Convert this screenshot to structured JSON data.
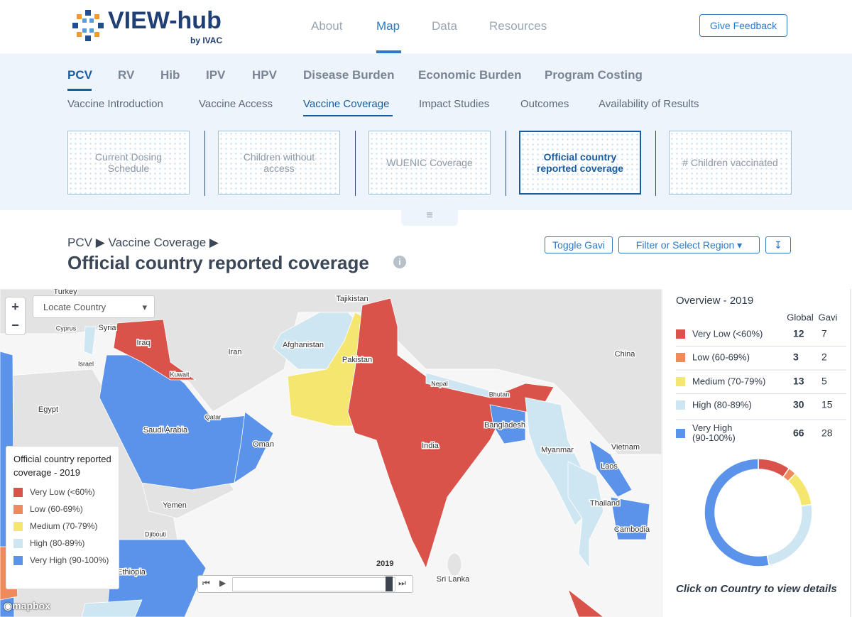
{
  "header": {
    "logo": "VIEW-hub",
    "logo_sub": "by IVAC",
    "nav": [
      "About",
      "Map",
      "Data",
      "Resources"
    ],
    "feedback": "Give Feedback"
  },
  "vaccine_tabs": [
    "PCV",
    "RV",
    "Hib",
    "IPV",
    "HPV",
    "Disease Burden",
    "Economic Burden",
    "Program Costing"
  ],
  "topic_tabs": [
    "Vaccine Introduction",
    "Vaccine Access",
    "Vaccine Coverage",
    "Impact Studies",
    "Outcomes",
    "Availability of Results"
  ],
  "cards": [
    "Current Dosing Schedule",
    "Children without access",
    "WUENIC Coverage",
    "Official country reported coverage",
    "# Children vaccinated"
  ],
  "breadcrumb": [
    "PCV",
    "Vaccine Coverage"
  ],
  "title": "Official country reported coverage",
  "buttons": [
    "Toggle Gavi",
    "Filter or Select Region"
  ],
  "map": {
    "locate": "Locate Country",
    "labels": [
      "Turkey",
      "Cyprus",
      "Syria",
      "Iraq",
      "Israel",
      "Kuwait",
      "Iran",
      "Tajikistan",
      "Afghanistan",
      "Pakistan",
      "China",
      "Egypt",
      "Qatar",
      "Saudi Arabia",
      "Nepal",
      "Bhutan",
      "Bangladesh",
      "India",
      "Oman",
      "Myanmar",
      "Vietnam",
      "Laos",
      "Yemen",
      "Thailand",
      "Djibouti",
      "Cambodia",
      "Ethiopia",
      "Sri Lanka"
    ],
    "legend_title": "Official country reported coverage - 2019",
    "year": "2019",
    "attribution": "mapbox"
  },
  "overview": {
    "title": "Overview - 2019",
    "columns": [
      "Global",
      "Gavi"
    ],
    "rows": [
      {
        "label": "Very Low (<60%)",
        "color": "#d9534a",
        "global": 12,
        "gavi": 7
      },
      {
        "label": "Low (60-69%)",
        "color": "#ef8b5a",
        "global": 3,
        "gavi": 2
      },
      {
        "label": "Medium (70-79%)",
        "color": "#f5e66f",
        "global": 13,
        "gavi": 5
      },
      {
        "label": "High (80-89%)",
        "color": "#cde6f2",
        "global": 30,
        "gavi": 15
      },
      {
        "label": "Very High (90-100%)",
        "color": "#5b93ea",
        "global": 66,
        "gavi": 28
      }
    ],
    "footer": "Click on Country to view details"
  }
}
